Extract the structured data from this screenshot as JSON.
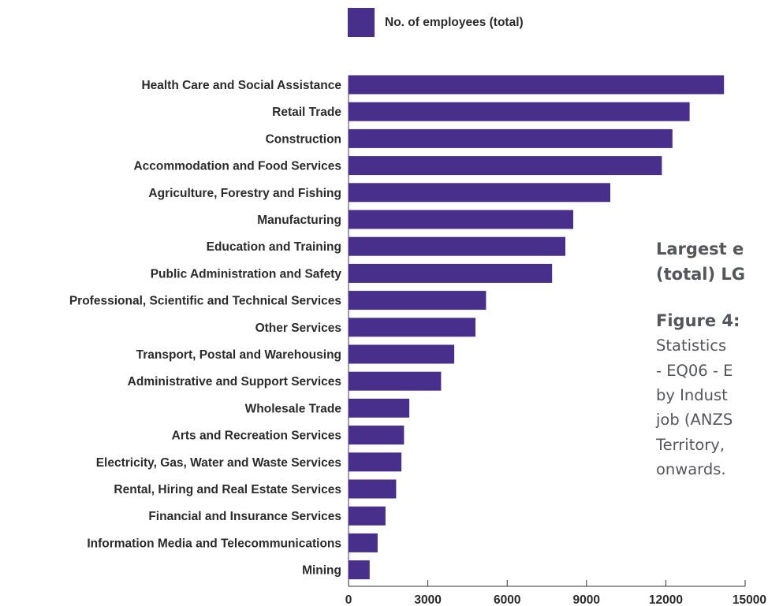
{
  "chart_data": {
    "type": "bar",
    "orientation": "horizontal",
    "legend": {
      "position": "top",
      "entries": [
        "No. of employees (total)"
      ]
    },
    "series": [
      {
        "name": "No. of employees (total)",
        "color": "#482f8c",
        "values": [
          14200,
          12900,
          12250,
          11850,
          9900,
          8500,
          8200,
          7700,
          5200,
          4800,
          4000,
          3500,
          2300,
          2100,
          2000,
          1800,
          1400,
          1100,
          800
        ]
      }
    ],
    "categories": [
      "Health Care and Social Assistance",
      "Retail Trade",
      "Construction",
      "Accommodation and Food Services",
      "Agriculture, Forestry and Fishing",
      "Manufacturing",
      "Education and Training",
      "Public Administration and Safety",
      "Professional, Scientific and Technical Services",
      "Other Services",
      "Transport, Postal and Warehousing",
      "Administrative and Support Services",
      "Wholesale Trade",
      "Arts and Recreation Services",
      "Electricity, Gas, Water and Waste Services",
      "Rental, Hiring and Real Estate Services",
      "Financial and Insurance Services",
      "Information Media and Telecommunications",
      "Mining"
    ],
    "x_ticks": [
      "0",
      "3000",
      "6000",
      "9000",
      "12000",
      "15000"
    ],
    "x_tick_values": [
      0,
      3000,
      6000,
      9000,
      12000,
      15000
    ],
    "xlim": [
      0,
      15000
    ],
    "grid": false
  },
  "side_text": {
    "heading_line1": "Largest e",
    "heading_line2": "(total) LG",
    "caption_bold": "Figure 4:",
    "caption_lines": [
      "Statistics",
      "- EQ06 - E",
      "by Indust",
      "job (ANZS",
      "Territory,",
      "onwards."
    ]
  }
}
